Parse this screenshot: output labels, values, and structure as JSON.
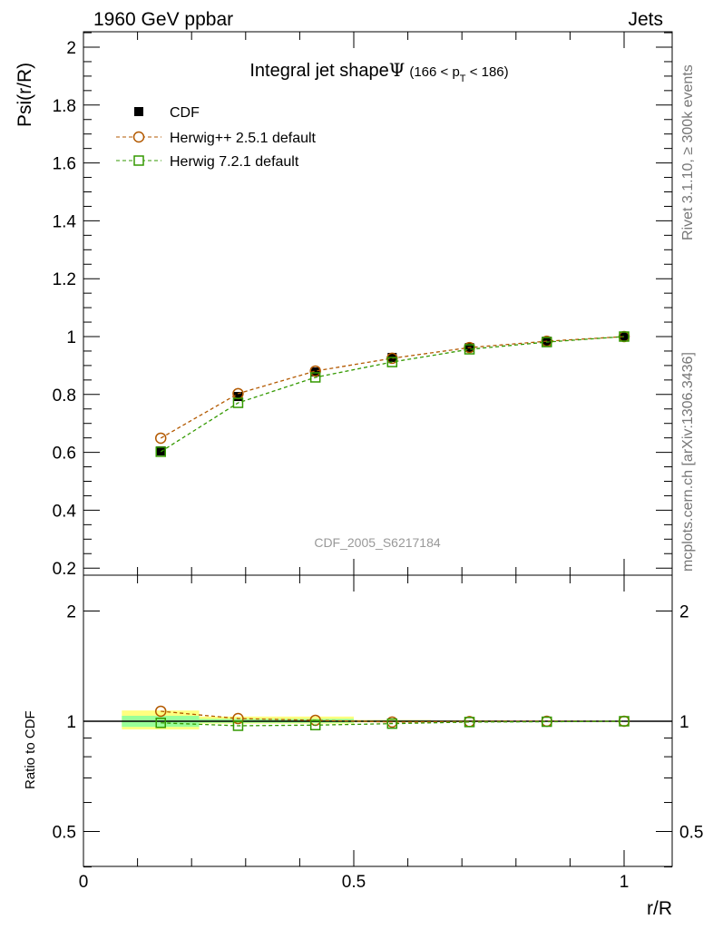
{
  "header": {
    "left": "1960 GeV ppbar",
    "right": "Jets"
  },
  "side_labels": {
    "rivet": "Rivet 3.1.10, ≥ 300k events",
    "mcplots": "mcplots.cern.ch [arXiv:1306.3436]"
  },
  "watermark": "CDF_2005_S6217184",
  "chart_data": [
    {
      "type": "line",
      "title": "Integral jet shape",
      "title_symbol": "Ψ",
      "title_range": "(166 < p",
      "title_sub": "T",
      "title_range_end": " < 186)",
      "xlabel": "r/R",
      "ylabel": "Psi(r/R)",
      "xlim": [
        0,
        1.09
      ],
      "ylim": [
        0.175,
        2.05
      ],
      "yticks": [
        0.2,
        0.4,
        0.6,
        0.8,
        1,
        1.2,
        1.4,
        1.6,
        1.8,
        2
      ],
      "ytick_labels": [
        "0.2",
        "0.4",
        "0.6",
        "0.8",
        "1",
        "1.2",
        "1.4",
        "1.6",
        "1.8",
        "2"
      ],
      "legend_position": "top-left",
      "x": [
        0.143,
        0.286,
        0.429,
        0.571,
        0.714,
        0.857,
        1.0
      ],
      "series": [
        {
          "name": "CDF",
          "marker": "filled-square",
          "color": "#000000",
          "values": [
            0.605,
            0.793,
            0.878,
            0.928,
            0.962,
            0.984,
            1.0
          ]
        },
        {
          "name": "Herwig++ 2.5.1 default",
          "marker": "open-circle",
          "color": "#b35900",
          "values": [
            0.649,
            0.803,
            0.881,
            0.925,
            0.962,
            0.984,
            1.0
          ]
        },
        {
          "name": "Herwig 7.2.1 default",
          "marker": "open-square",
          "color": "#339900",
          "values": [
            0.602,
            0.771,
            0.859,
            0.912,
            0.956,
            0.981,
            1.0
          ]
        }
      ]
    },
    {
      "type": "line",
      "ylabel": "Ratio to CDF",
      "xlabel": "r/R",
      "yscale": "log",
      "ylim": [
        0.4,
        2.4
      ],
      "yticks": [
        0.5,
        1,
        2
      ],
      "ytick_labels": [
        "0.5",
        "1",
        "2"
      ],
      "xticks": [
        0,
        0.5,
        1
      ],
      "xtick_labels": [
        "0",
        "0.5",
        "1"
      ],
      "x": [
        0.143,
        0.286,
        0.429,
        0.571,
        0.714,
        0.857,
        1.0
      ],
      "bin_edges": [
        0.071,
        0.214,
        0.357,
        0.5,
        0.643,
        0.786,
        0.929,
        1.071
      ],
      "band_outer": [
        [
          0.95,
          1.07
        ],
        [
          0.985,
          1.03
        ],
        [
          0.985,
          1.03
        ],
        [
          0.993,
          1.008
        ],
        [
          0.995,
          1.005
        ],
        [
          0.997,
          1.003
        ],
        [
          0.999,
          1.001
        ]
      ],
      "band_inner": [
        [
          0.965,
          1.035
        ],
        [
          0.99,
          1.015
        ],
        [
          0.99,
          1.015
        ],
        [
          0.996,
          1.004
        ],
        [
          0.997,
          1.003
        ],
        [
          0.998,
          1.002
        ],
        [
          0.999,
          1.001
        ]
      ],
      "series": [
        {
          "name": "Herwig++ 2.5.1 default",
          "color": "#b35900",
          "values": [
            1.065,
            1.017,
            1.006,
            0.995,
            0.998,
            1.0,
            1.0
          ]
        },
        {
          "name": "Herwig 7.2.1 default",
          "color": "#339900",
          "values": [
            0.99,
            0.972,
            0.976,
            0.985,
            0.995,
            0.997,
            1.0
          ]
        }
      ]
    }
  ]
}
